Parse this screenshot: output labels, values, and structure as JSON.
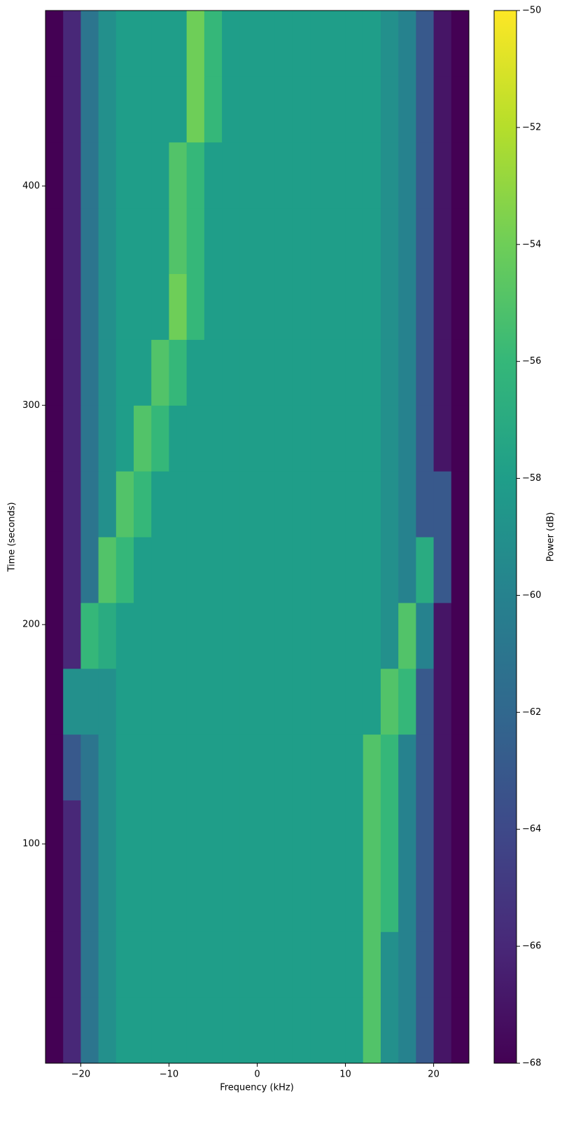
{
  "chart_data": {
    "type": "heatmap",
    "x_label": "Frequency (kHz)",
    "y_label": "Time (seconds)",
    "colorbar_label": "Power (dB)",
    "colormap": "viridis",
    "x": [
      -24,
      -22,
      -20,
      -18,
      -16,
      -14,
      -12,
      -10,
      -8,
      -6,
      -4,
      -2,
      0,
      2,
      4,
      6,
      8,
      10,
      12,
      14,
      16,
      18,
      20,
      22,
      24
    ],
    "y": [
      0,
      30,
      60,
      90,
      120,
      150,
      180,
      210,
      240,
      270,
      300,
      330,
      360,
      390,
      420,
      450,
      480
    ],
    "z": [
      [
        -68,
        -66,
        -61,
        -59,
        -58,
        -58,
        -58,
        -58,
        -58,
        -58,
        -58,
        -58,
        -58,
        -58,
        -58,
        -58,
        -58,
        -58,
        -55,
        -59,
        -60,
        -63,
        -67,
        -68
      ],
      [
        -68,
        -66,
        -61,
        -59,
        -58,
        -58,
        -58,
        -58,
        -58,
        -58,
        -58,
        -58,
        -58,
        -58,
        -58,
        -58,
        -58,
        -58,
        -55,
        -59,
        -60,
        -63,
        -67,
        -68
      ],
      [
        -68,
        -66,
        -61,
        -59,
        -58,
        -58,
        -58,
        -58,
        -58,
        -58,
        -58,
        -58,
        -58,
        -58,
        -58,
        -58,
        -58,
        -58,
        -55,
        -56,
        -60,
        -63,
        -67,
        -68
      ],
      [
        -68,
        -66,
        -61,
        -59,
        -58,
        -58,
        -58,
        -58,
        -58,
        -58,
        -58,
        -58,
        -58,
        -58,
        -58,
        -58,
        -58,
        -58,
        -55,
        -56,
        -60,
        -63,
        -67,
        -68
      ],
      [
        -68,
        -63,
        -61,
        -59,
        -58,
        -58,
        -58,
        -58,
        -58,
        -58,
        -58,
        -58,
        -58,
        -58,
        -58,
        -58,
        -58,
        -58,
        -55,
        -56,
        -60,
        -63,
        -67,
        -68
      ],
      [
        -68,
        -59,
        -59,
        -59,
        -58,
        -58,
        -58,
        -58,
        -58,
        -58,
        -58,
        -58,
        -58,
        -58,
        -58,
        -58,
        -58,
        -58,
        -58,
        -55,
        -56,
        -63,
        -67,
        -68
      ],
      [
        -68,
        -66,
        -56,
        -57,
        -58,
        -58,
        -58,
        -58,
        -58,
        -58,
        -58,
        -58,
        -58,
        -58,
        -58,
        -58,
        -58,
        -58,
        -58,
        -59,
        -55,
        -60,
        -67,
        -68
      ],
      [
        -68,
        -66,
        -61,
        -55,
        -56,
        -58,
        -58,
        -58,
        -58,
        -58,
        -58,
        -58,
        -58,
        -58,
        -58,
        -58,
        -58,
        -58,
        -58,
        -59,
        -60,
        -57,
        -63,
        -68
      ],
      [
        -68,
        -66,
        -61,
        -59,
        -55,
        -56,
        -58,
        -58,
        -58,
        -58,
        -58,
        -58,
        -58,
        -58,
        -58,
        -58,
        -58,
        -58,
        -58,
        -59,
        -60,
        -63,
        -63,
        -68
      ],
      [
        -68,
        -66,
        -61,
        -59,
        -58,
        -55,
        -56,
        -58,
        -58,
        -58,
        -58,
        -58,
        -58,
        -58,
        -58,
        -58,
        -58,
        -58,
        -58,
        -59,
        -60,
        -63,
        -67,
        -68
      ],
      [
        -68,
        -66,
        -61,
        -59,
        -58,
        -58,
        -55,
        -56,
        -58,
        -58,
        -58,
        -58,
        -58,
        -58,
        -58,
        -58,
        -58,
        -58,
        -58,
        -59,
        -60,
        -63,
        -67,
        -68
      ],
      [
        -68,
        -66,
        -61,
        -59,
        -58,
        -58,
        -58,
        -54,
        -56,
        -58,
        -58,
        -58,
        -58,
        -58,
        -58,
        -58,
        -58,
        -58,
        -58,
        -59,
        -60,
        -63,
        -67,
        -68
      ],
      [
        -68,
        -66,
        -61,
        -59,
        -58,
        -58,
        -58,
        -55,
        -56,
        -58,
        -58,
        -58,
        -58,
        -58,
        -58,
        -58,
        -58,
        -58,
        -58,
        -59,
        -60,
        -63,
        -67,
        -68
      ],
      [
        -68,
        -66,
        -61,
        -59,
        -58,
        -58,
        -58,
        -55,
        -56,
        -58,
        -58,
        -58,
        -58,
        -58,
        -58,
        -58,
        -58,
        -58,
        -58,
        -59,
        -60,
        -63,
        -67,
        -68
      ],
      [
        -68,
        -66,
        -61,
        -59,
        -58,
        -58,
        -58,
        -58,
        -54,
        -56,
        -58,
        -58,
        -58,
        -58,
        -58,
        -58,
        -58,
        -58,
        -58,
        -59,
        -60,
        -63,
        -67,
        -68
      ],
      [
        -68,
        -66,
        -61,
        -59,
        -58,
        -58,
        -58,
        -58,
        -54,
        -56,
        -58,
        -58,
        -58,
        -58,
        -58,
        -58,
        -58,
        -58,
        -58,
        -59,
        -60,
        -63,
        -67,
        -68
      ]
    ],
    "xlim": [
      -24,
      24
    ],
    "ylim": [
      0,
      480
    ],
    "zlim": [
      -68,
      -50
    ],
    "xticks": [
      {
        "value": -20,
        "label": "−20"
      },
      {
        "value": -10,
        "label": "−10"
      },
      0,
      10,
      20
    ],
    "yticks": [
      100,
      200,
      300,
      400
    ],
    "colorbar_ticks": [
      {
        "value": -68,
        "label": "−68"
      },
      {
        "value": -66,
        "label": "−66"
      },
      {
        "value": -64,
        "label": "−64"
      },
      {
        "value": -62,
        "label": "−62"
      },
      {
        "value": -60,
        "label": "−60"
      },
      {
        "value": -58,
        "label": "−58"
      },
      {
        "value": -56,
        "label": "−56"
      },
      {
        "value": -54,
        "label": "−54"
      },
      {
        "value": -52,
        "label": "−52"
      },
      {
        "value": -50,
        "label": "−50"
      }
    ]
  }
}
